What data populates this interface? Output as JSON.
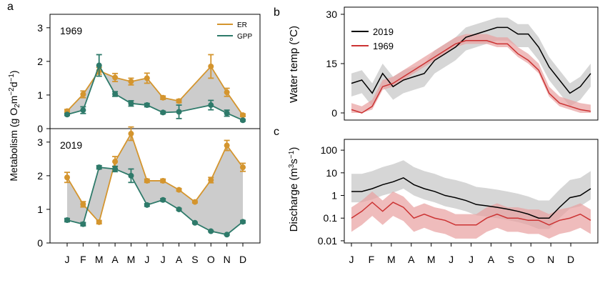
{
  "colors": {
    "er": "#d4952e",
    "gpp": "#2e7a6a",
    "y2019": "#000000",
    "y1969": "#cc3333",
    "fill": "#cccccc",
    "fill1969": "#e8a0a0"
  },
  "panels": {
    "a": "a",
    "b": "b",
    "c": "c"
  },
  "chart_data": [
    {
      "type": "line",
      "panel": "a-top",
      "title": "1969",
      "ylabel": "Metabolism (g O₂m⁻²d⁻¹)",
      "categories": [
        "J",
        "F",
        "M",
        "A",
        "M",
        "J",
        "J",
        "A",
        "S",
        "O",
        "N",
        "D"
      ],
      "ylim": [
        0,
        3.4
      ],
      "yticks": [
        0,
        1,
        2,
        3
      ],
      "legend": [
        "ER",
        "GPP"
      ],
      "series": [
        {
          "name": "ER",
          "values": [
            0.52,
            1.02,
            1.72,
            1.52,
            1.4,
            1.5,
            0.92,
            0.82,
            null,
            1.85,
            1.08,
            0.4
          ],
          "errors": [
            0.05,
            0.1,
            0.1,
            0.12,
            0.1,
            0.15,
            0.05,
            0.05,
            null,
            0.35,
            0.12,
            0.04
          ]
        },
        {
          "name": "GPP",
          "values": [
            0.42,
            0.55,
            1.88,
            1.03,
            0.75,
            0.7,
            0.48,
            0.5,
            null,
            0.7,
            0.46,
            0.25
          ],
          "errors": [
            0.03,
            0.1,
            0.32,
            0.07,
            0.08,
            0.05,
            0.04,
            0.2,
            null,
            0.14,
            0.09,
            0.03
          ]
        }
      ]
    },
    {
      "type": "line",
      "panel": "a-bottom",
      "title": "2019",
      "categories": [
        "J",
        "F",
        "M",
        "A",
        "M",
        "J",
        "J",
        "A",
        "S",
        "O",
        "N",
        "D"
      ],
      "ylim": [
        0,
        3.4
      ],
      "yticks": [
        0,
        1,
        2,
        3
      ],
      "series": [
        {
          "name": "ER",
          "values": [
            1.95,
            1.15,
            0.62,
            2.42,
            3.25,
            1.85,
            1.85,
            1.58,
            1.22,
            1.87,
            2.9,
            2.25
          ],
          "errors": [
            0.15,
            0.08,
            0.05,
            0.15,
            0.2,
            0.05,
            0.05,
            0.04,
            0.03,
            0.08,
            0.15,
            0.12
          ]
        },
        {
          "name": "GPP",
          "values": [
            0.68,
            0.56,
            2.25,
            2.2,
            2.0,
            1.13,
            1.28,
            1.0,
            0.6,
            0.35,
            0.25,
            0.63
          ],
          "errors": [
            0.05,
            0.05,
            0.05,
            0.08,
            0.2,
            0.04,
            0.04,
            0.03,
            0.02,
            0.02,
            0.02,
            0.04
          ]
        }
      ]
    },
    {
      "type": "line",
      "panel": "b",
      "ylabel": "Water temp (°C)",
      "ylim": [
        0,
        30
      ],
      "yticks": [
        0,
        15,
        30
      ],
      "legend": [
        "2019",
        "1969"
      ],
      "x": [
        0.5,
        1,
        1.5,
        2,
        2.5,
        3,
        3.5,
        4,
        4.5,
        5,
        5.5,
        6,
        6.5,
        7,
        7.5,
        8,
        8.5,
        9,
        9.5,
        10,
        10.5,
        11,
        11.5,
        12
      ],
      "series": [
        {
          "name": "2019",
          "values": [
            9,
            10,
            6,
            12,
            8,
            10,
            11,
            12,
            16,
            18,
            20,
            23,
            24,
            25,
            26,
            26,
            24,
            24,
            20,
            14,
            10,
            6,
            8,
            12
          ]
        },
        {
          "name": "1969",
          "values": [
            1,
            0,
            2,
            8,
            9,
            11,
            13,
            15,
            17,
            19,
            21,
            22,
            22,
            22,
            21,
            21,
            18,
            16,
            13,
            6,
            3,
            2,
            1,
            0.5
          ]
        }
      ]
    },
    {
      "type": "line",
      "panel": "c",
      "ylabel": "Discharge (m³s⁻¹)",
      "yscale": "log",
      "ylim": [
        0.01,
        200
      ],
      "yticks": [
        100,
        10,
        1,
        0.1,
        0.01
      ],
      "categories": [
        "J",
        "F",
        "M",
        "A",
        "M",
        "J",
        "J",
        "A",
        "S",
        "O",
        "N",
        "D"
      ],
      "x": [
        0.5,
        1,
        1.5,
        2,
        2.5,
        3,
        3.5,
        4,
        4.5,
        5,
        5.5,
        6,
        6.5,
        7,
        7.5,
        8,
        8.5,
        9,
        9.5,
        10,
        10.5,
        11,
        11.5,
        12
      ],
      "series": [
        {
          "name": "2019",
          "values": [
            1.5,
            1.5,
            2,
            3,
            4,
            6,
            3,
            2,
            1.5,
            1,
            0.8,
            0.6,
            0.4,
            0.35,
            0.3,
            0.25,
            0.2,
            0.15,
            0.1,
            0.1,
            0.3,
            0.8,
            1,
            2
          ]
        },
        {
          "name": "1969",
          "values": [
            0.1,
            0.2,
            0.5,
            0.2,
            0.5,
            0.3,
            0.1,
            0.15,
            0.1,
            0.08,
            0.05,
            0.05,
            0.05,
            0.1,
            0.15,
            0.1,
            0.1,
            0.08,
            0.08,
            0.05,
            0.08,
            0.1,
            0.15,
            0.08
          ]
        }
      ]
    }
  ]
}
